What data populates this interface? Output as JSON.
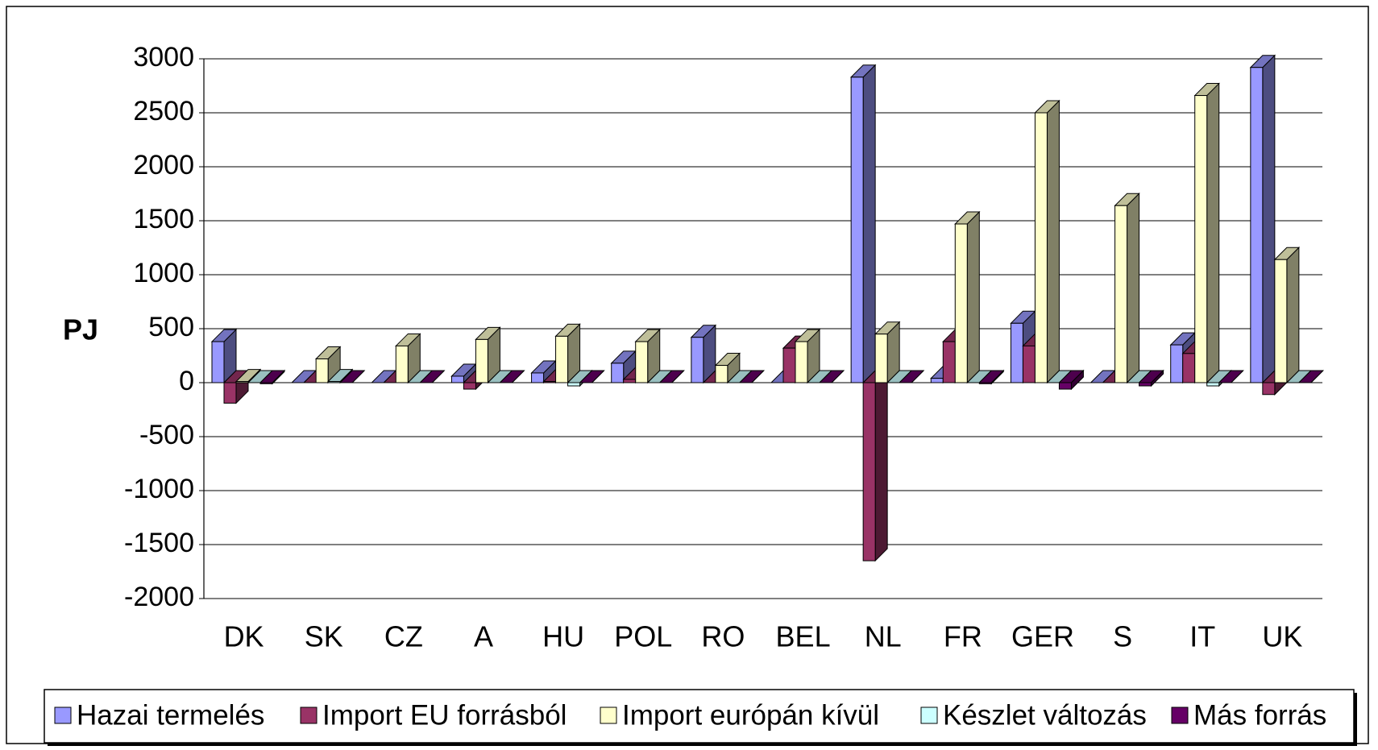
{
  "chart_data": {
    "type": "bar3d",
    "y_label": "PJ",
    "categories": [
      "DK",
      "SK",
      "CZ",
      "A",
      "HU",
      "POL",
      "RO",
      "BEL",
      "NL",
      "FR",
      "GER",
      "S",
      "IT",
      "UK"
    ],
    "series": [
      {
        "name": "Hazai termelés",
        "color": "#9999ff",
        "values": [
          380,
          0,
          0,
          60,
          90,
          180,
          420,
          0,
          2830,
          40,
          550,
          0,
          350,
          2920
        ]
      },
      {
        "name": "Import EU forrásból",
        "color": "#993366",
        "values": [
          -190,
          0,
          0,
          -60,
          10,
          30,
          0,
          320,
          -1650,
          380,
          340,
          0,
          270,
          -110
        ]
      },
      {
        "name": "Import európán kívül",
        "color": "#ffffcc",
        "values": [
          10,
          220,
          340,
          400,
          430,
          380,
          160,
          380,
          450,
          1470,
          2500,
          1640,
          2660,
          1140
        ]
      },
      {
        "name": "Készlet változás",
        "color": "#ccffff",
        "values": [
          0,
          10,
          0,
          0,
          -30,
          0,
          0,
          0,
          0,
          0,
          0,
          0,
          -30,
          0
        ]
      },
      {
        "name": "Más forrás",
        "color": "#660066",
        "values": [
          -10,
          0,
          0,
          0,
          0,
          0,
          0,
          0,
          0,
          -10,
          -60,
          -30,
          0,
          0
        ]
      }
    ],
    "ylim": [
      -2000,
      3000
    ],
    "yticks": [
      -2000,
      -1500,
      -1000,
      -500,
      0,
      500,
      1000,
      1500,
      2000,
      2500,
      3000
    ],
    "grid": true,
    "legend": "bottom"
  }
}
